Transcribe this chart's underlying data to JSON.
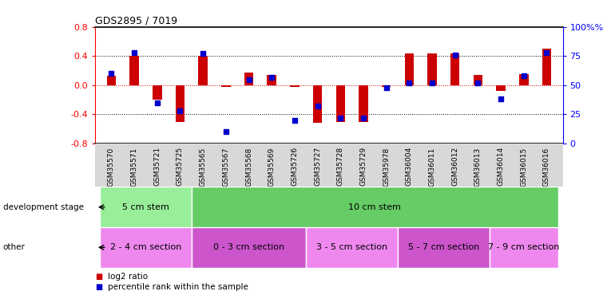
{
  "title": "GDS2895 / 7019",
  "samples": [
    "GSM35570",
    "GSM35571",
    "GSM35721",
    "GSM35725",
    "GSM35565",
    "GSM35567",
    "GSM35568",
    "GSM35569",
    "GSM35726",
    "GSM35727",
    "GSM35728",
    "GSM35729",
    "GSM35978",
    "GSM36004",
    "GSM36011",
    "GSM36012",
    "GSM36013",
    "GSM36014",
    "GSM36015",
    "GSM36016"
  ],
  "log2_ratio": [
    0.13,
    0.4,
    -0.2,
    -0.5,
    0.4,
    -0.02,
    0.17,
    0.14,
    -0.02,
    -0.52,
    -0.5,
    -0.5,
    -0.02,
    0.44,
    0.44,
    0.44,
    0.14,
    -0.08,
    0.15,
    0.5
  ],
  "percentile": [
    0.6,
    0.78,
    0.35,
    0.28,
    0.77,
    0.1,
    0.55,
    0.57,
    0.2,
    0.32,
    0.22,
    0.22,
    0.48,
    0.52,
    0.52,
    0.76,
    0.52,
    0.38,
    0.58,
    0.78
  ],
  "ylim": [
    -0.8,
    0.8
  ],
  "yticks_left": [
    -0.8,
    -0.4,
    0.0,
    0.4,
    0.8
  ],
  "yticks_right": [
    0,
    25,
    50,
    75,
    100
  ],
  "bar_color_red": "#cc0000",
  "bar_color_blue": "#0000cc",
  "bg_color": "#ffffff",
  "tick_area_bg": "#d8d8d8",
  "dev_stage_colors": [
    "#88dd88",
    "#55cc55"
  ],
  "other_colors": [
    "#ee88ee",
    "#cc55cc"
  ],
  "dev_stage_groups": [
    {
      "label": "5 cm stem",
      "start": 0,
      "end": 3,
      "color": "#99ee99"
    },
    {
      "label": "10 cm stem",
      "start": 4,
      "end": 19,
      "color": "#66cc66"
    }
  ],
  "other_groups": [
    {
      "label": "2 - 4 cm section",
      "start": 0,
      "end": 3,
      "color": "#ee88ee"
    },
    {
      "label": "0 - 3 cm section",
      "start": 4,
      "end": 8,
      "color": "#cc55cc"
    },
    {
      "label": "3 - 5 cm section",
      "start": 9,
      "end": 12,
      "color": "#ee88ee"
    },
    {
      "label": "5 - 7 cm section",
      "start": 13,
      "end": 16,
      "color": "#cc55cc"
    },
    {
      "label": "7 - 9 cm section",
      "start": 17,
      "end": 19,
      "color": "#ee88ee"
    }
  ],
  "legend_red_label": "log2 ratio",
  "legend_blue_label": "percentile rank within the sample",
  "dev_stage_label": "development stage",
  "other_label": "other",
  "dotted_line_color": "#000000",
  "zero_line_color": "#cc0000",
  "bar_width": 0.4,
  "pct_marker_size": 5
}
